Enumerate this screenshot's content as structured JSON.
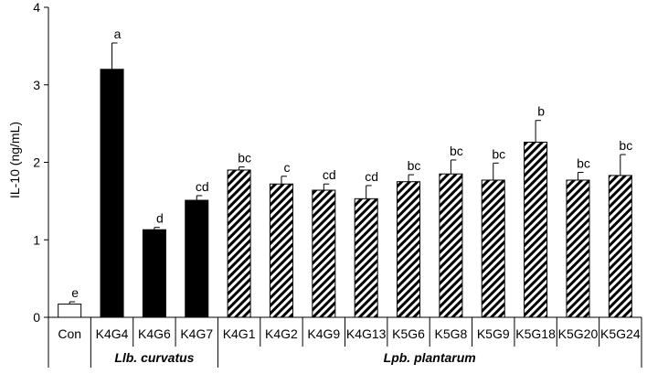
{
  "chart_data": {
    "type": "bar",
    "ylabel": "IL-10 (ng/mL)",
    "ylim": [
      0,
      4
    ],
    "yticks": [
      0,
      1,
      2,
      3,
      4
    ],
    "grid": false,
    "categories": [
      "Con",
      "K4G4",
      "K4G6",
      "K4G7",
      "K4G1",
      "K4G2",
      "K4G9",
      "K4G13",
      "K5G6",
      "K5G8",
      "K5G9",
      "K5G18",
      "K5G20",
      "K5G24"
    ],
    "values": [
      0.17,
      3.2,
      1.13,
      1.51,
      1.9,
      1.72,
      1.64,
      1.53,
      1.75,
      1.85,
      1.77,
      2.26,
      1.77,
      1.83
    ],
    "errors": [
      0.03,
      0.34,
      0.03,
      0.06,
      0.04,
      0.1,
      0.08,
      0.17,
      0.09,
      0.18,
      0.22,
      0.28,
      0.1,
      0.27
    ],
    "significance": [
      "e",
      "a",
      "d",
      "cd",
      "bc",
      "c",
      "cd",
      "cd",
      "bc",
      "bc",
      "bc",
      "b",
      "bc",
      "bc"
    ],
    "fill": [
      "white",
      "black",
      "black",
      "black",
      "hatched",
      "hatched",
      "hatched",
      "hatched",
      "hatched",
      "hatched",
      "hatched",
      "hatched",
      "hatched",
      "hatched"
    ],
    "groups": [
      {
        "label": "Llb. curvatus",
        "start": 1,
        "end": 3
      },
      {
        "label": "Lpb. plantarum",
        "start": 4,
        "end": 13
      }
    ],
    "colors": {
      "solid": "#000000",
      "outline": "#000000",
      "background": "#ffffff"
    }
  }
}
